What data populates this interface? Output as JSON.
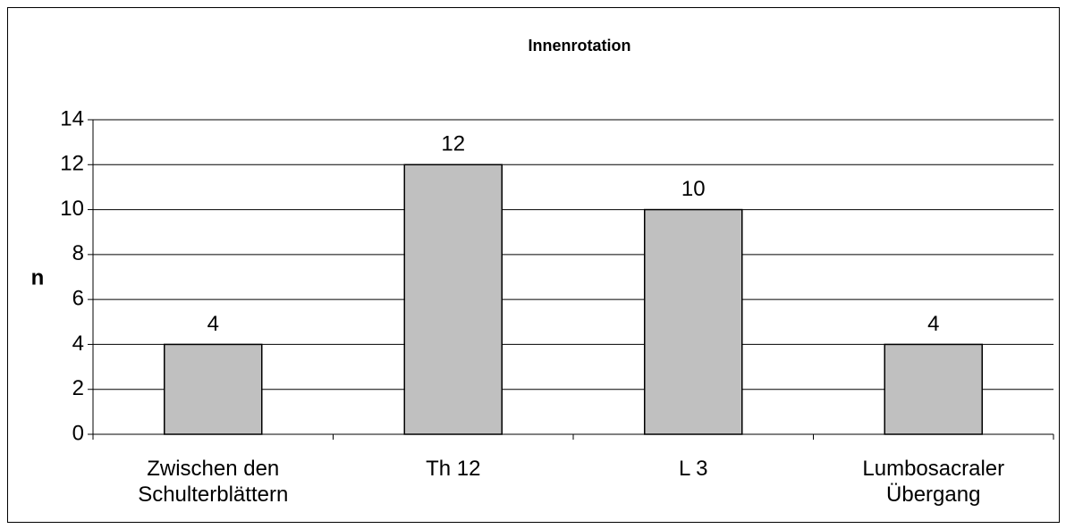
{
  "chart_data": {
    "type": "bar",
    "title": "Innenrotation",
    "y_label": "n",
    "categories": [
      "Zwischen den Schulterblättern",
      "Th 12",
      "L 3",
      "Lumbosacraler Übergang"
    ],
    "values": [
      4,
      12,
      10,
      4
    ],
    "color": "#c0c0c0",
    "ylim": [
      0,
      14
    ],
    "yticks": [
      0,
      2,
      4,
      6,
      8,
      10,
      12,
      14
    ],
    "grid": true
  }
}
